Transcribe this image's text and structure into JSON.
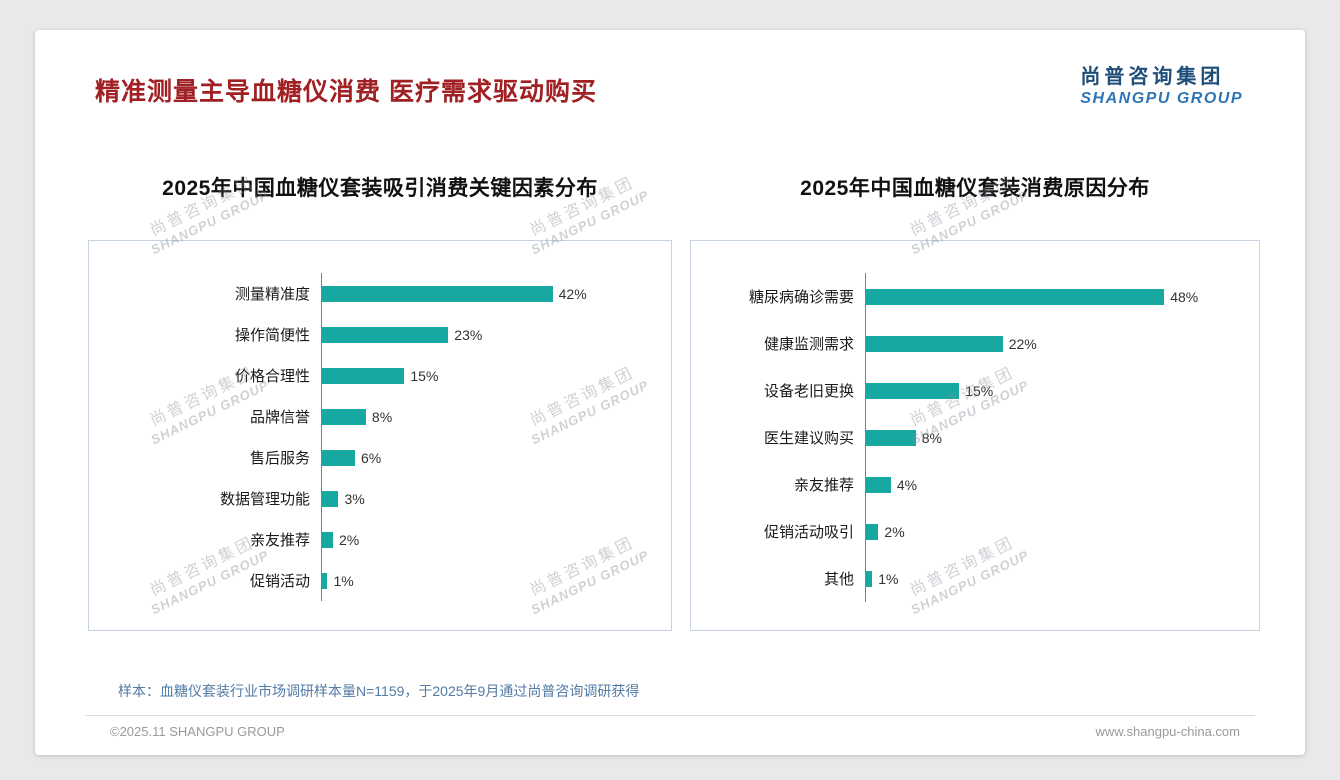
{
  "slide": {
    "title": "精准测量主导血糖仪消费 医疗需求驱动购买",
    "logo": {
      "cn": "尚普咨询集团",
      "en": "SHANGPU GROUP"
    },
    "watermark": {
      "cn": "尚普咨询集团",
      "en": "SHANGPU GROUP"
    },
    "footnote": "样本：血糖仪套装行业市场调研样本量N=1159，于2025年9月通过尚普咨询调研获得",
    "footer_left": "©2025.11 SHANGPU GROUP",
    "footer_right": "www.shangpu-china.com"
  },
  "colors": {
    "title_red": "#a02024",
    "bar_teal": "#17a9a1",
    "logo_blue_cn": "#1f4e79",
    "logo_blue_en": "#2e75b6",
    "footnote_blue": "#527ba5"
  },
  "chart_data": [
    {
      "type": "bar",
      "orientation": "horizontal",
      "title": "2025年中国血糖仪套装吸引消费关键因素分布",
      "categories": [
        "测量精准度",
        "操作简便性",
        "价格合理性",
        "品牌信誉",
        "售后服务",
        "数据管理功能",
        "亲友推荐",
        "促销活动"
      ],
      "values": [
        42,
        23,
        15,
        8,
        6,
        3,
        2,
        1
      ],
      "unit": "%",
      "xlim": [
        0,
        61
      ],
      "grid": false,
      "legend": "none"
    },
    {
      "type": "bar",
      "orientation": "horizontal",
      "title": "2025年中国血糖仪套装消费原因分布",
      "categories": [
        "糖尿病确诊需要",
        "健康监测需求",
        "设备老旧更换",
        "医生建议购买",
        "亲友推荐",
        "促销活动吸引",
        "其他"
      ],
      "values": [
        48,
        22,
        15,
        8,
        4,
        2,
        1
      ],
      "unit": "%",
      "xlim": [
        0,
        61
      ],
      "grid": false,
      "legend": "none"
    }
  ]
}
